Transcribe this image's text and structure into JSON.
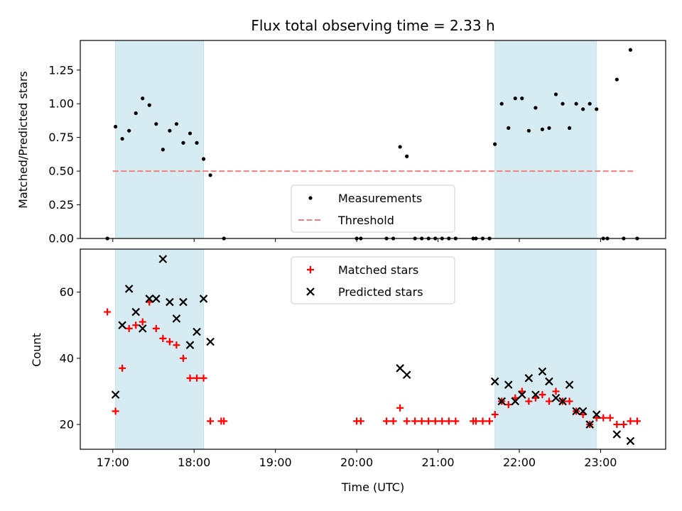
{
  "chart_data": [
    {
      "type": "scatter",
      "title": "Flux total observing time = 2.33 h",
      "xlabel": "",
      "ylabel": "Matched/Predicted stars",
      "xlim": [
        "16:36",
        "23:48"
      ],
      "ylim": [
        0,
        1.47
      ],
      "yticks": [
        0.0,
        0.25,
        0.5,
        0.75,
        1.0,
        1.25
      ],
      "ytick_labels": [
        "0.00",
        "0.25",
        "0.50",
        "0.75",
        "1.00",
        "1.25"
      ],
      "grid": false,
      "legend": {
        "placement": "lower-center",
        "entries": [
          "Measurements",
          "Threshold"
        ]
      },
      "shaded_intervals": [
        {
          "start": "17:02",
          "end": "18:07"
        },
        {
          "start": "21:42",
          "end": "22:57"
        }
      ],
      "threshold": {
        "name": "Threshold",
        "value": 0.5,
        "x_range": [
          "17:00",
          "23:26"
        ],
        "color": "#f08080"
      },
      "series": [
        {
          "name": "Measurements",
          "color": "#000000",
          "points": [
            [
              "16:56",
              0.0
            ],
            [
              "17:02",
              0.83
            ],
            [
              "17:07",
              0.74
            ],
            [
              "17:12",
              0.8
            ],
            [
              "17:17",
              0.93
            ],
            [
              "17:22",
              1.04
            ],
            [
              "17:27",
              0.99
            ],
            [
              "17:32",
              0.85
            ],
            [
              "17:37",
              0.66
            ],
            [
              "17:42",
              0.8
            ],
            [
              "17:47",
              0.85
            ],
            [
              "17:52",
              0.71
            ],
            [
              "17:57",
              0.78
            ],
            [
              "18:02",
              0.71
            ],
            [
              "18:07",
              0.59
            ],
            [
              "18:12",
              0.47
            ],
            [
              "18:22",
              0.0
            ],
            [
              "20:00",
              0.0
            ],
            [
              "20:03",
              0.0
            ],
            [
              "20:22",
              0.0
            ],
            [
              "20:27",
              0.0
            ],
            [
              "20:32",
              0.68
            ],
            [
              "20:37",
              0.61
            ],
            [
              "20:43",
              0.0
            ],
            [
              "20:48",
              0.0
            ],
            [
              "20:53",
              0.0
            ],
            [
              "20:58",
              0.0
            ],
            [
              "21:03",
              0.0
            ],
            [
              "21:08",
              0.0
            ],
            [
              "21:13",
              0.0
            ],
            [
              "21:26",
              0.0
            ],
            [
              "21:28",
              0.0
            ],
            [
              "21:33",
              0.0
            ],
            [
              "21:38",
              0.0
            ],
            [
              "21:42",
              0.7
            ],
            [
              "21:47",
              1.0
            ],
            [
              "21:52",
              0.82
            ],
            [
              "21:57",
              1.04
            ],
            [
              "22:02",
              1.04
            ],
            [
              "22:07",
              0.8
            ],
            [
              "22:12",
              0.97
            ],
            [
              "22:17",
              0.81
            ],
            [
              "22:22",
              0.82
            ],
            [
              "22:27",
              1.07
            ],
            [
              "22:32",
              1.0
            ],
            [
              "22:37",
              0.82
            ],
            [
              "22:42",
              1.0
            ],
            [
              "22:47",
              0.96
            ],
            [
              "22:52",
              1.0
            ],
            [
              "22:57",
              0.96
            ],
            [
              "23:02",
              0.0
            ],
            [
              "23:05",
              0.0
            ],
            [
              "23:12",
              1.18
            ],
            [
              "23:17",
              0.0
            ],
            [
              "23:22",
              1.4
            ],
            [
              "23:27",
              0.0
            ]
          ]
        }
      ]
    },
    {
      "type": "scatter",
      "title": "",
      "xlabel": "Time (UTC)",
      "ylabel": "Count",
      "xlim": [
        "16:36",
        "23:48"
      ],
      "ylim": [
        12.5,
        73
      ],
      "yticks": [
        20,
        40,
        60
      ],
      "ytick_labels": [
        "20",
        "40",
        "60"
      ],
      "xticks": [
        "17:00",
        "18:00",
        "19:00",
        "20:00",
        "21:00",
        "22:00",
        "23:00"
      ],
      "xtick_labels": [
        "17:00",
        "18:00",
        "19:00",
        "20:00",
        "21:00",
        "22:00",
        "23:00"
      ],
      "grid": false,
      "legend": {
        "placement": "top-center",
        "entries": [
          "Matched stars",
          "Predicted stars"
        ]
      },
      "shaded_intervals": [
        {
          "start": "17:02",
          "end": "18:07"
        },
        {
          "start": "21:42",
          "end": "22:57"
        }
      ],
      "series": [
        {
          "name": "Matched stars",
          "marker": "plus",
          "color": "#ff0000",
          "points": [
            [
              "16:56",
              54
            ],
            [
              "17:02",
              24
            ],
            [
              "17:07",
              37
            ],
            [
              "17:12",
              49
            ],
            [
              "17:17",
              50
            ],
            [
              "17:22",
              51
            ],
            [
              "17:27",
              57
            ],
            [
              "17:32",
              49
            ],
            [
              "17:37",
              46
            ],
            [
              "17:42",
              45
            ],
            [
              "17:47",
              44
            ],
            [
              "17:52",
              40
            ],
            [
              "17:57",
              34
            ],
            [
              "18:02",
              34
            ],
            [
              "18:07",
              34
            ],
            [
              "18:12",
              21
            ],
            [
              "18:20",
              21
            ],
            [
              "18:22",
              21
            ],
            [
              "20:00",
              21
            ],
            [
              "20:03",
              21
            ],
            [
              "20:22",
              21
            ],
            [
              "20:27",
              21
            ],
            [
              "20:32",
              25
            ],
            [
              "20:37",
              21
            ],
            [
              "20:43",
              21
            ],
            [
              "20:48",
              21
            ],
            [
              "20:53",
              21
            ],
            [
              "20:58",
              21
            ],
            [
              "21:03",
              21
            ],
            [
              "21:08",
              21
            ],
            [
              "21:13",
              21
            ],
            [
              "21:26",
              21
            ],
            [
              "21:28",
              21
            ],
            [
              "21:33",
              21
            ],
            [
              "21:38",
              21
            ],
            [
              "21:42",
              23
            ],
            [
              "21:47",
              27
            ],
            [
              "21:52",
              26
            ],
            [
              "21:57",
              28
            ],
            [
              "22:02",
              30
            ],
            [
              "22:07",
              27
            ],
            [
              "22:12",
              28
            ],
            [
              "22:17",
              29
            ],
            [
              "22:22",
              27
            ],
            [
              "22:27",
              30
            ],
            [
              "22:32",
              27
            ],
            [
              "22:37",
              27
            ],
            [
              "22:42",
              24
            ],
            [
              "22:47",
              23
            ],
            [
              "22:52",
              20
            ],
            [
              "22:57",
              22
            ],
            [
              "23:02",
              22
            ],
            [
              "23:07",
              22
            ],
            [
              "23:12",
              20
            ],
            [
              "23:17",
              20
            ],
            [
              "23:22",
              21
            ],
            [
              "23:27",
              21
            ]
          ]
        },
        {
          "name": "Predicted stars",
          "marker": "x",
          "color": "#000000",
          "points": [
            [
              "17:02",
              29
            ],
            [
              "17:07",
              50
            ],
            [
              "17:12",
              61
            ],
            [
              "17:17",
              54
            ],
            [
              "17:22",
              49
            ],
            [
              "17:27",
              58
            ],
            [
              "17:32",
              58
            ],
            [
              "17:37",
              70
            ],
            [
              "17:42",
              57
            ],
            [
              "17:47",
              52
            ],
            [
              "17:52",
              57
            ],
            [
              "17:57",
              44
            ],
            [
              "18:02",
              48
            ],
            [
              "18:07",
              58
            ],
            [
              "18:12",
              45
            ],
            [
              "20:32",
              37
            ],
            [
              "20:37",
              35
            ],
            [
              "21:42",
              33
            ],
            [
              "21:47",
              27
            ],
            [
              "21:52",
              32
            ],
            [
              "21:57",
              27
            ],
            [
              "22:02",
              29
            ],
            [
              "22:07",
              34
            ],
            [
              "22:12",
              29
            ],
            [
              "22:17",
              36
            ],
            [
              "22:22",
              33
            ],
            [
              "22:27",
              28
            ],
            [
              "22:32",
              27
            ],
            [
              "22:37",
              32
            ],
            [
              "22:42",
              24
            ],
            [
              "22:47",
              24
            ],
            [
              "22:52",
              20
            ],
            [
              "22:57",
              23
            ],
            [
              "23:12",
              17
            ],
            [
              "23:22",
              15
            ]
          ]
        }
      ]
    }
  ]
}
